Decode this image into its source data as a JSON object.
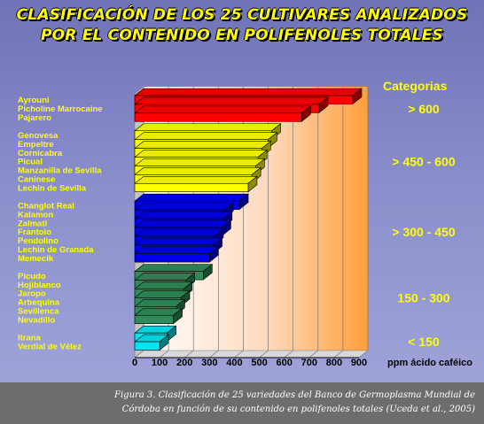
{
  "title": {
    "line1": "CLASIFICACIÓN DE LOS 25 CULTIVARES ANALIZADOS",
    "line2": "POR EL CONTENIDO EN POLIFENOLES TOTALES"
  },
  "legend_heading": "Categorias",
  "caption": {
    "line1": "Figura 3. Clasificación de 25 variedades del Banco de Germoplasma Mundial de",
    "line2": "Córdoba en función de su contenido en polifenoles totales (Uceda et al., 2005)"
  },
  "chart_data": {
    "type": "bar",
    "orientation": "horizontal",
    "xlabel": "ppm ácido caféico",
    "xlim": [
      0,
      900
    ],
    "ticks": [
      0,
      100,
      200,
      300,
      400,
      500,
      600,
      700,
      800,
      900
    ],
    "grid": true,
    "groups": [
      {
        "label": "> 600",
        "color": "#ff0000",
        "items": [
          {
            "name": "Ayrouni",
            "value": 875
          },
          {
            "name": "Picholine Marrocaine",
            "value": 740
          },
          {
            "name": "Pajarero",
            "value": 670
          }
        ]
      },
      {
        "label": "> 450 - 600",
        "color": "#ffff00",
        "items": [
          {
            "name": "Genovesa",
            "value": 550
          },
          {
            "name": "Empeltre",
            "value": 535
          },
          {
            "name": "Cornicabra",
            "value": 510
          },
          {
            "name": "Picual",
            "value": 495
          },
          {
            "name": "Manzanilla de Sevilla",
            "value": 485
          },
          {
            "name": "Caninese",
            "value": 470
          },
          {
            "name": "Lechin de Sevilla",
            "value": 455
          }
        ]
      },
      {
        "label": "> 300 - 450",
        "color": "#0000ee",
        "items": [
          {
            "name": "Changlot Real",
            "value": 420
          },
          {
            "name": "Kalamon",
            "value": 360
          },
          {
            "name": "Zalmati",
            "value": 355
          },
          {
            "name": "Frantoio",
            "value": 350
          },
          {
            "name": "Pendolino",
            "value": 320
          },
          {
            "name": "Lechin de Granada",
            "value": 315
          },
          {
            "name": "Memecik",
            "value": 300
          }
        ]
      },
      {
        "label": "150 - 300",
        "color": "#2e8b57",
        "items": [
          {
            "name": "Picudo",
            "value": 275
          },
          {
            "name": "Hojiblanco",
            "value": 205
          },
          {
            "name": "Jaropo",
            "value": 195
          },
          {
            "name": "Arbequina",
            "value": 185
          },
          {
            "name": "Sevillenca",
            "value": 165
          },
          {
            "name": "Nevadillo",
            "value": 155
          }
        ]
      },
      {
        "label": "< 150",
        "color": "#00e5ee",
        "items": [
          {
            "name": "Itrana",
            "value": 130
          },
          {
            "name": "Verdial de Vélez",
            "value": 100
          }
        ]
      }
    ]
  }
}
